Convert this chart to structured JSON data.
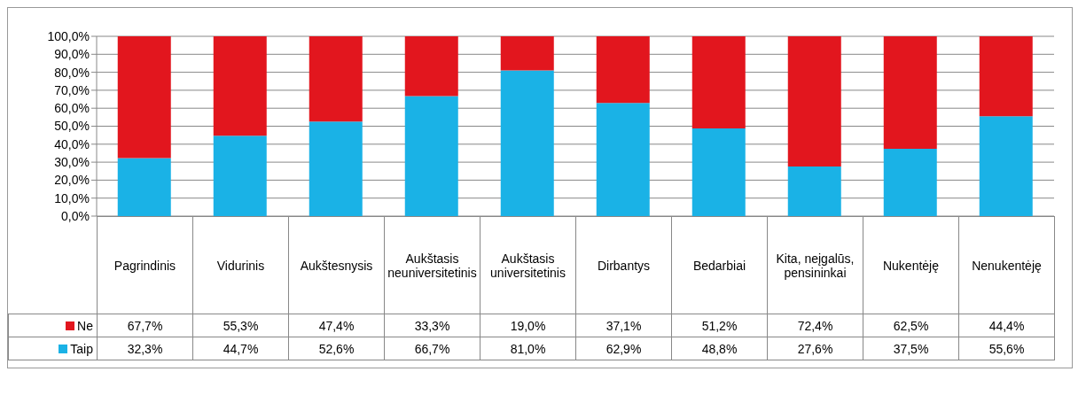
{
  "chart_data": {
    "type": "bar",
    "stacked": true,
    "categories": [
      "Pagrindinis",
      "Vidurinis",
      "Aukštesnysis",
      "Aukštasis neuniversitetinis",
      "Aukštasis universitetinis",
      "Dirbantys",
      "Bedarbiai",
      "Kita, neįgalūs, pensininkai",
      "Nukentėję",
      "Nenukentėję"
    ],
    "series": [
      {
        "name": "Taip",
        "color": "#1ab2e6",
        "values": [
          32.3,
          44.7,
          52.6,
          66.7,
          81.0,
          62.9,
          48.8,
          27.6,
          37.5,
          55.6
        ],
        "value_labels": [
          "32,3%",
          "44,7%",
          "52,6%",
          "66,7%",
          "81,0%",
          "62,9%",
          "48,8%",
          "27,6%",
          "37,5%",
          "55,6%"
        ]
      },
      {
        "name": "Ne",
        "color": "#e2161e",
        "values": [
          67.7,
          55.3,
          47.4,
          33.3,
          19.0,
          37.1,
          51.2,
          72.4,
          62.5,
          44.4
        ],
        "value_labels": [
          "67,7%",
          "55,3%",
          "47,4%",
          "33,3%",
          "19,0%",
          "37,1%",
          "51,2%",
          "72,4%",
          "62,5%",
          "44,4%"
        ]
      }
    ],
    "ylim": [
      0,
      100
    ],
    "yticks": [
      {
        "value": 0,
        "label": "0,0%"
      },
      {
        "value": 10,
        "label": "10,0%"
      },
      {
        "value": 20,
        "label": "20,0%"
      },
      {
        "value": 30,
        "label": "30,0%"
      },
      {
        "value": 40,
        "label": "40,0%"
      },
      {
        "value": 50,
        "label": "50,0%"
      },
      {
        "value": 60,
        "label": "60,0%"
      },
      {
        "value": 70,
        "label": "70,0%"
      },
      {
        "value": 80,
        "label": "80,0%"
      },
      {
        "value": 90,
        "label": "90,0%"
      },
      {
        "value": 100,
        "label": "100,0%"
      }
    ],
    "grid": "y",
    "legend": "bottom left",
    "data_labels": true
  }
}
